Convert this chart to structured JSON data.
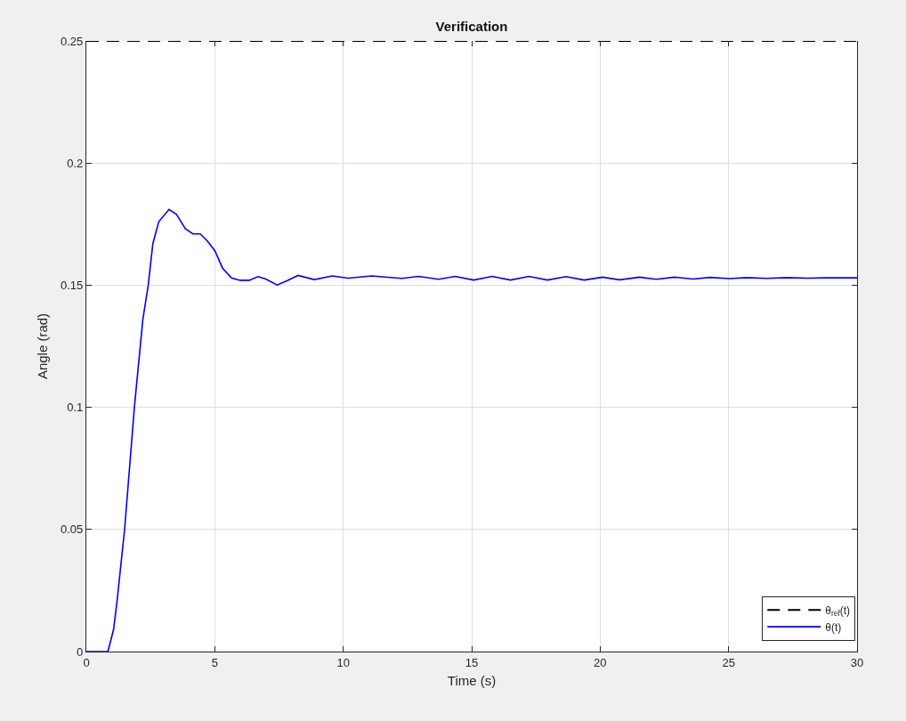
{
  "chart_data": {
    "type": "line",
    "title": "Verification",
    "xlabel": "Time (s)",
    "ylabel": "Angle (rad)",
    "xlim": [
      0,
      30
    ],
    "xticks": [
      0,
      5,
      10,
      15,
      20,
      25,
      30
    ],
    "ylim": [
      0,
      0.25
    ],
    "yticks": [
      0,
      0.05,
      0.1,
      0.15,
      0.2,
      0.25
    ],
    "grid": true,
    "legend": "bottom right",
    "marker": "none",
    "series": [
      {
        "name": "θ$_{ref}$(t)",
        "color": "#000000",
        "line_style": "dashed",
        "x": [
          0,
          30
        ],
        "values": [
          0.25,
          0.25
        ]
      },
      {
        "name": "θ(t)",
        "color": "#0000ff",
        "line_style": "solid",
        "x": [
          0,
          0.84,
          1.06,
          1.2,
          1.49,
          1.87,
          2.2,
          2.41,
          2.59,
          2.82,
          3.22,
          3.51,
          3.86,
          4.15,
          4.43,
          4.72,
          5.01,
          5.3,
          5.65,
          5.99,
          6.34,
          6.68,
          6.97,
          7.43,
          7.84,
          8.24,
          8.88,
          9.57,
          10.19,
          11.1,
          12.28,
          12.93,
          13.71,
          14.36,
          15.08,
          15.8,
          16.51,
          17.23,
          17.95,
          18.67,
          19.38,
          20.1,
          20.75,
          21.53,
          22.18,
          22.9,
          23.62,
          24.27,
          25.05,
          25.7,
          26.49,
          27.27,
          28.05,
          28.83,
          30
        ],
        "values": [
          0,
          0,
          0.009,
          0.021,
          0.05,
          0.1,
          0.136,
          0.15,
          0.167,
          0.176,
          0.181,
          0.179,
          0.173,
          0.171,
          0.171,
          0.168,
          0.164,
          0.157,
          0.153,
          0.152,
          0.152,
          0.1535,
          0.1526,
          0.1501,
          0.152,
          0.154,
          0.1523,
          0.1538,
          0.1529,
          0.1538,
          0.1528,
          0.1536,
          0.1524,
          0.1536,
          0.1521,
          0.1536,
          0.1521,
          0.1536,
          0.1521,
          0.1535,
          0.1521,
          0.1533,
          0.1522,
          0.1533,
          0.1524,
          0.1533,
          0.1525,
          0.1532,
          0.1527,
          0.1531,
          0.1528,
          0.1531,
          0.1529,
          0.153,
          0.153
        ]
      }
    ]
  }
}
